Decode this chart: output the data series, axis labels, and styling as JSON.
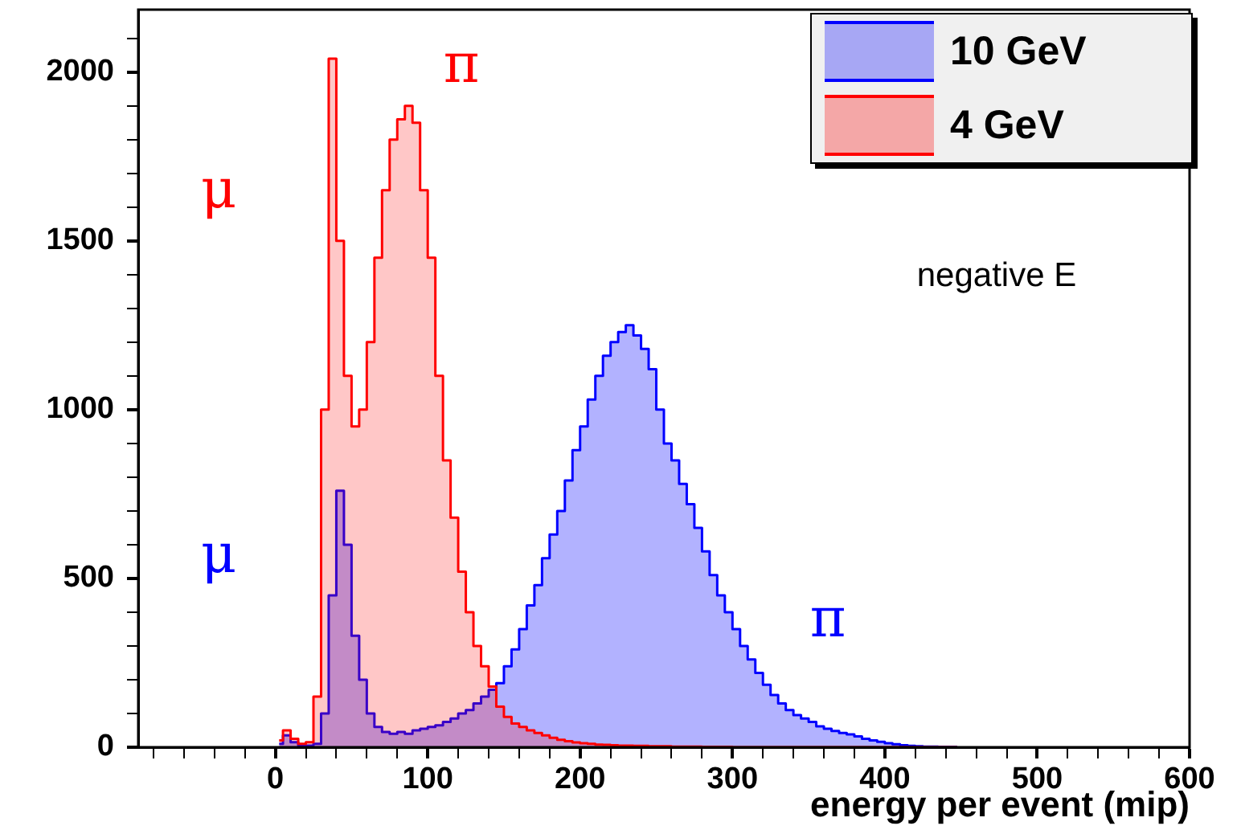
{
  "chart_data": {
    "type": "histogram",
    "xlabel": "energy per event (mip)",
    "xlim": [
      -90,
      600
    ],
    "xticks": [
      {
        "value": -80,
        "label": null
      },
      {
        "value": -60,
        "label": null
      },
      {
        "value": -40,
        "label": null
      },
      {
        "value": -20,
        "label": null
      },
      0,
      {
        "value": 20,
        "label": null
      },
      {
        "value": 40,
        "label": null
      },
      {
        "value": 60,
        "label": null
      },
      {
        "value": 80,
        "label": null
      },
      100,
      {
        "value": 120,
        "label": null
      },
      {
        "value": 140,
        "label": null
      },
      {
        "value": 160,
        "label": null
      },
      {
        "value": 180,
        "label": null
      },
      200,
      {
        "value": 220,
        "label": null
      },
      {
        "value": 240,
        "label": null
      },
      {
        "value": 260,
        "label": null
      },
      {
        "value": 280,
        "label": null
      },
      300,
      {
        "value": 320,
        "label": null
      },
      {
        "value": 340,
        "label": null
      },
      {
        "value": 360,
        "label": null
      },
      {
        "value": 380,
        "label": null
      },
      400,
      {
        "value": 420,
        "label": null
      },
      {
        "value": 440,
        "label": null
      },
      {
        "value": 460,
        "label": null
      },
      {
        "value": 480,
        "label": null
      },
      500,
      {
        "value": 520,
        "label": null
      },
      {
        "value": 540,
        "label": null
      },
      {
        "value": 560,
        "label": null
      },
      {
        "value": 580,
        "label": null
      },
      600
    ],
    "ylim": [
      0,
      2185
    ],
    "yticks": [
      0,
      {
        "value": 100,
        "label": null
      },
      {
        "value": 200,
        "label": null
      },
      {
        "value": 300,
        "label": null
      },
      {
        "value": 400,
        "label": null
      },
      500,
      {
        "value": 600,
        "label": null
      },
      {
        "value": 700,
        "label": null
      },
      {
        "value": 800,
        "label": null
      },
      {
        "value": 900,
        "label": null
      },
      1000,
      {
        "value": 1100,
        "label": null
      },
      {
        "value": 1200,
        "label": null
      },
      {
        "value": 1300,
        "label": null
      },
      {
        "value": 1400,
        "label": null
      },
      1500,
      {
        "value": 1600,
        "label": null
      },
      {
        "value": 1700,
        "label": null
      },
      {
        "value": 1800,
        "label": null
      },
      {
        "value": 1900,
        "label": null
      },
      2000,
      {
        "value": 2100,
        "label": null
      }
    ],
    "bins": [
      0,
      5,
      10,
      15,
      20,
      25,
      30,
      35,
      40,
      45,
      50,
      55,
      60,
      65,
      70,
      75,
      80,
      85,
      90,
      95,
      100,
      105,
      110,
      115,
      120,
      125,
      130,
      135,
      140,
      145,
      150,
      155,
      160,
      165,
      170,
      175,
      180,
      185,
      190,
      195,
      200,
      205,
      210,
      215,
      220,
      225,
      230,
      235,
      240,
      245,
      250,
      255,
      260,
      265,
      270,
      275,
      280,
      285,
      290,
      295,
      300,
      305,
      310,
      315,
      320,
      325,
      330,
      335,
      340,
      345,
      350,
      355,
      360,
      365,
      370,
      375,
      380,
      385,
      390,
      395,
      400,
      405,
      410,
      415,
      420,
      425,
      430,
      435,
      440,
      445,
      450
    ],
    "series": [
      {
        "name": "10 GeV",
        "color": "#0000ff",
        "values": [
          10,
          35,
          15,
          5,
          5,
          10,
          100,
          450,
          760,
          600,
          330,
          200,
          100,
          60,
          45,
          40,
          45,
          40,
          50,
          55,
          60,
          65,
          75,
          85,
          100,
          110,
          130,
          150,
          170,
          190,
          240,
          290,
          350,
          420,
          480,
          560,
          630,
          700,
          790,
          880,
          950,
          1030,
          1100,
          1160,
          1200,
          1230,
          1250,
          1220,
          1180,
          1120,
          1000,
          900,
          850,
          780,
          720,
          650,
          580,
          510,
          450,
          400,
          350,
          300,
          260,
          220,
          185,
          155,
          130,
          110,
          95,
          85,
          75,
          62,
          55,
          48,
          42,
          38,
          32,
          25,
          20,
          16,
          12,
          9,
          6,
          4,
          3,
          2,
          2,
          1,
          1,
          1
        ]
      },
      {
        "name": "4 GeV",
        "color": "#ff0000",
        "values": [
          20,
          50,
          25,
          10,
          15,
          150,
          1000,
          2040,
          1500,
          1100,
          950,
          1000,
          1200,
          1450,
          1650,
          1800,
          1860,
          1900,
          1850,
          1650,
          1450,
          1100,
          850,
          680,
          520,
          400,
          300,
          240,
          180,
          120,
          90,
          70,
          60,
          50,
          42,
          35,
          28,
          22,
          18,
          14,
          12,
          10,
          8,
          7,
          6,
          5,
          5,
          4,
          4,
          3,
          3,
          3,
          2,
          2,
          2,
          2,
          1,
          1,
          1,
          1,
          0,
          0,
          0,
          0,
          0,
          0,
          0,
          0,
          0,
          0,
          0,
          0,
          0,
          0,
          0,
          0,
          0,
          0,
          0,
          0,
          0,
          0,
          0,
          0,
          0,
          0,
          0,
          0,
          0,
          0
        ]
      }
    ],
    "legend": "top right",
    "grid": false,
    "annotations": [
      "μ",
      "π",
      "μ",
      "π",
      "negative E"
    ]
  }
}
